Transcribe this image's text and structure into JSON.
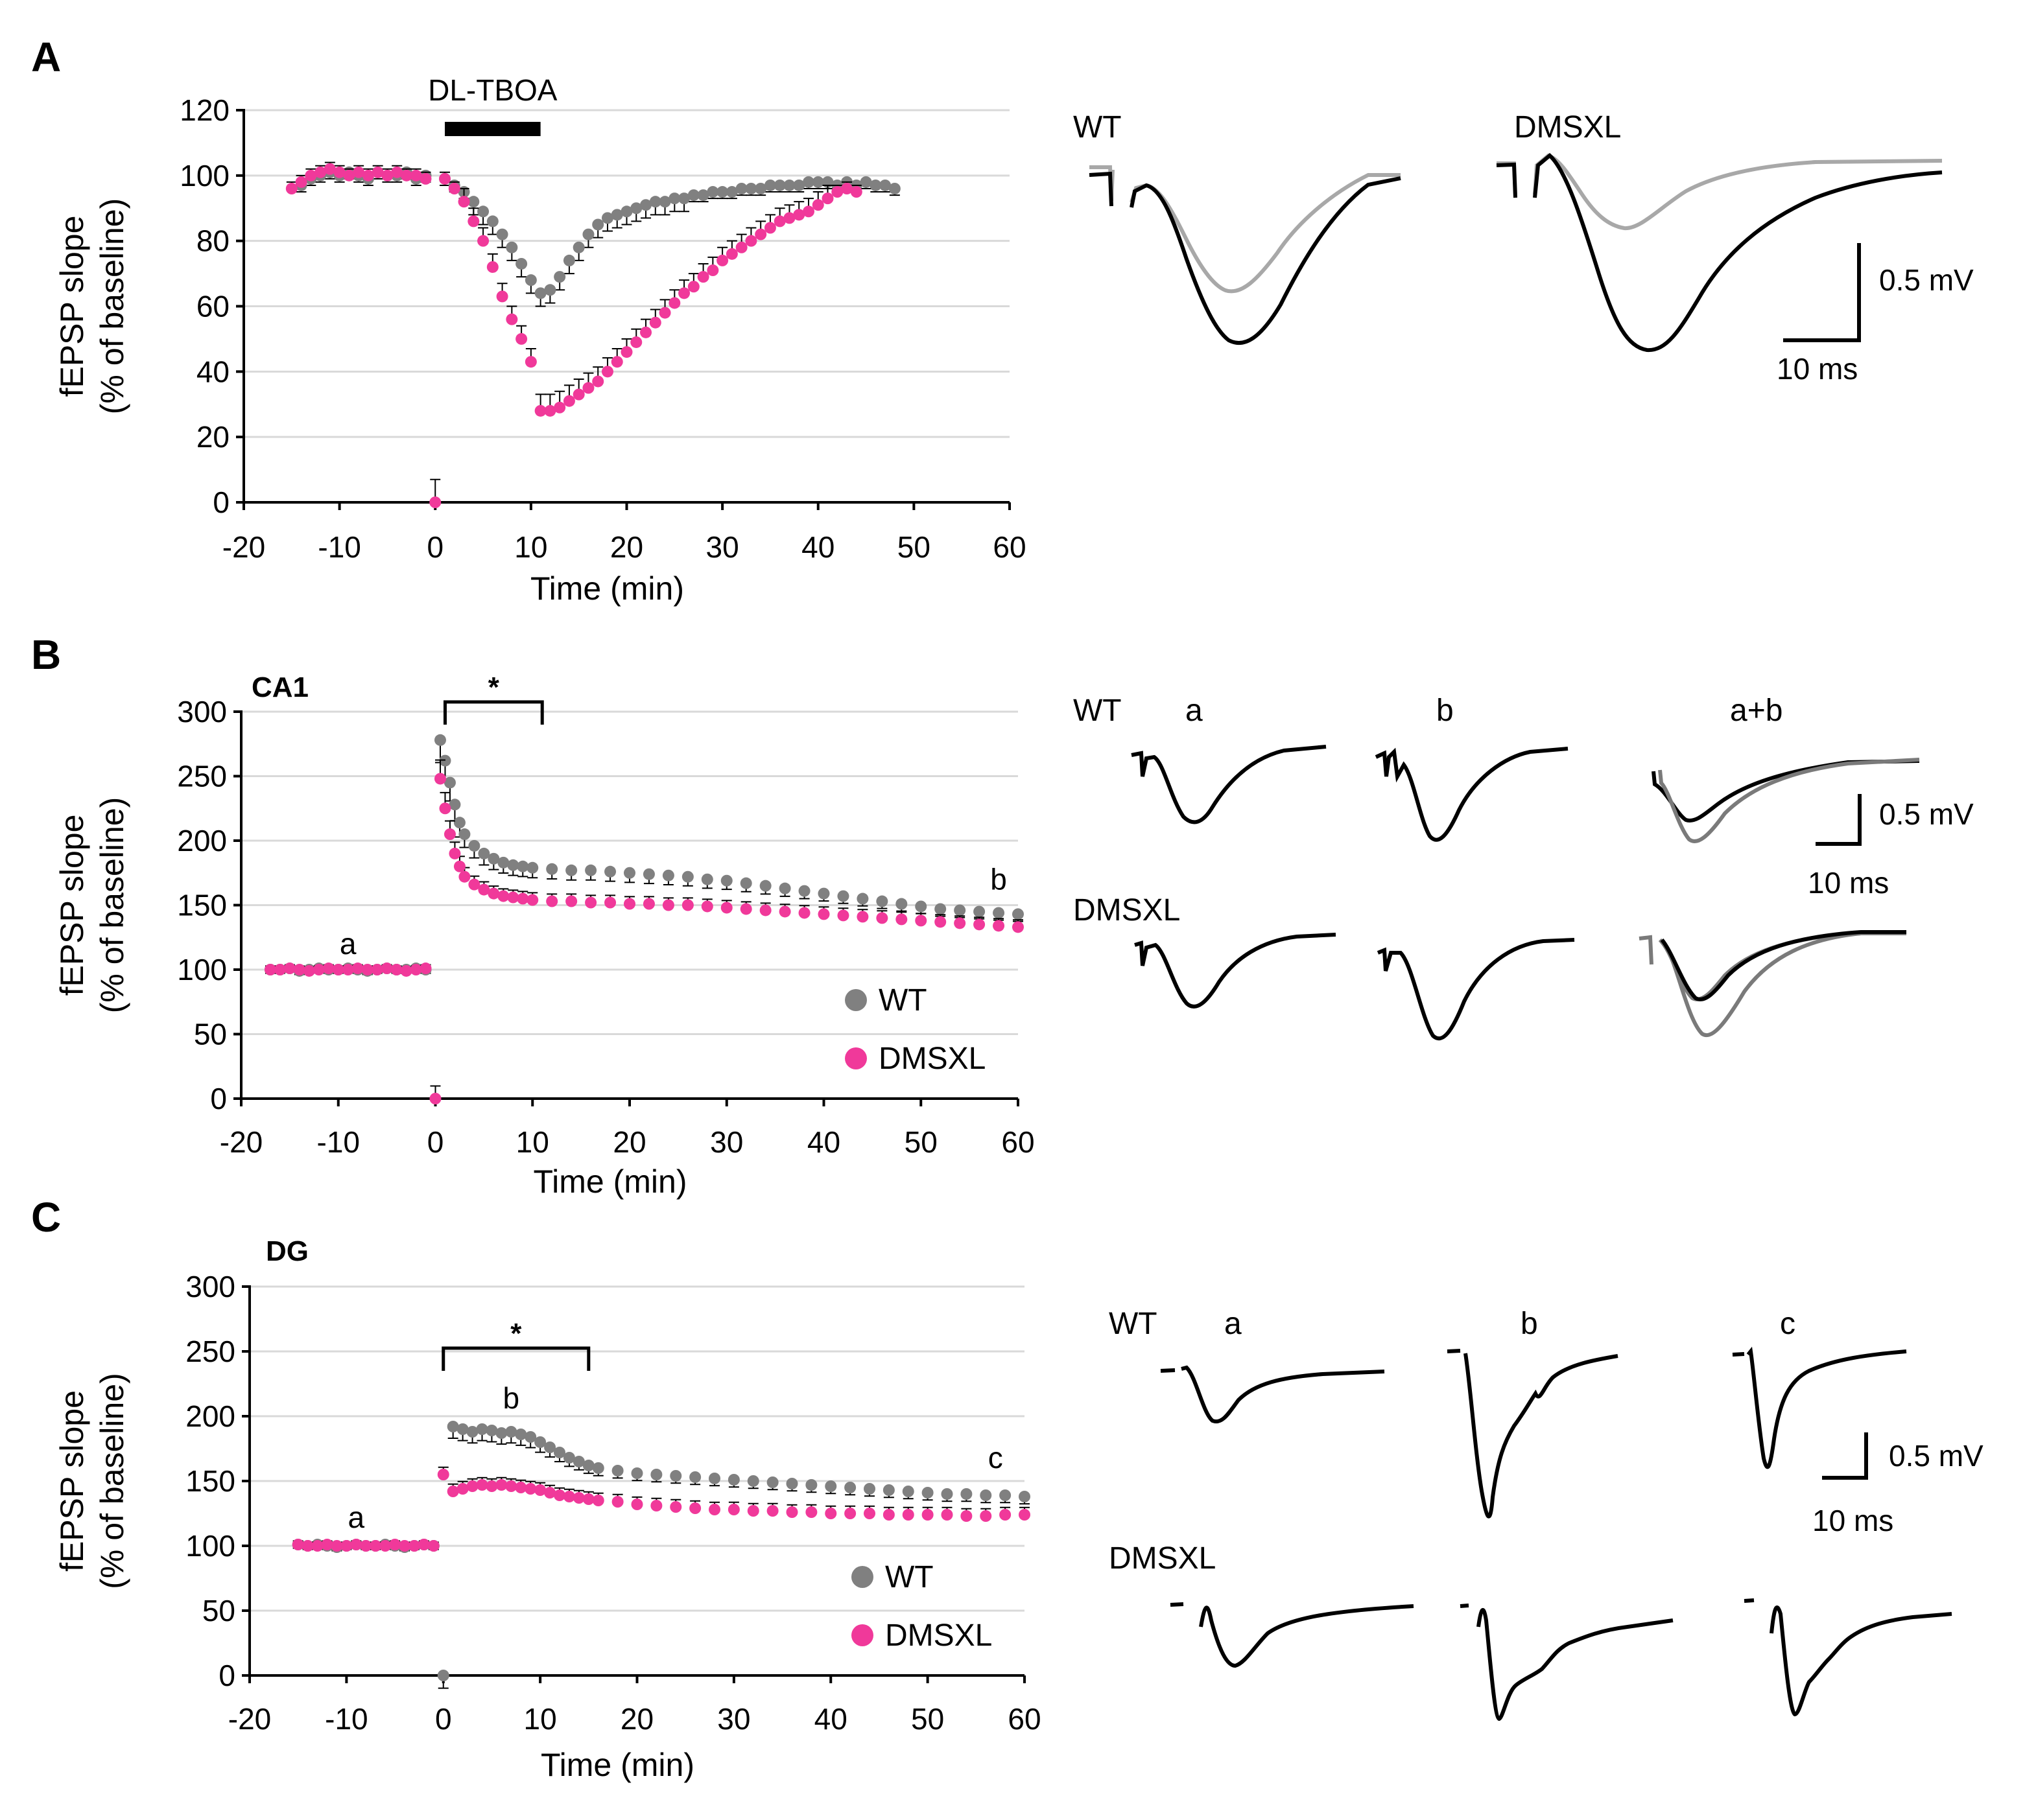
{
  "colors": {
    "wt": "#808080",
    "dmsxl": "#f0399a",
    "trace_gray": "#a8a8a8",
    "trace_dark_gray": "#7a7a7a",
    "gridline": "#d9d9d9"
  },
  "panel_labels": {
    "a": "A",
    "b": "B",
    "c": "C"
  },
  "chart_data": [
    {
      "id": "A",
      "type": "scatter",
      "title": "",
      "xlabel": "Time (min)",
      "ylabel_line1": "fEPSP slope",
      "ylabel_line2": "(% of baseline)",
      "xlim": [
        -20,
        60
      ],
      "ylim": [
        0,
        120
      ],
      "xticks": [
        "-20",
        "-10",
        "0",
        "10",
        "20",
        "30",
        "40",
        "50",
        "60"
      ],
      "yticks": [
        "0",
        "20",
        "40",
        "60",
        "80",
        "100",
        "120"
      ],
      "grid": true,
      "annotation_bar": {
        "label": "DL-TBOA",
        "x_start": 1,
        "x_end": 11
      },
      "series": [
        {
          "name": "WT",
          "color": "#808080",
          "x": [
            -14,
            -13,
            -12,
            -11,
            -10,
            -9,
            -8,
            -7,
            -6,
            -5,
            -4,
            -3,
            -2,
            -1,
            0,
            1,
            2,
            3,
            4,
            5,
            6,
            7,
            8,
            9,
            10,
            11,
            12,
            13,
            14,
            15,
            16,
            17,
            18,
            19,
            20,
            21,
            22,
            23,
            24,
            25,
            26,
            27,
            28,
            29,
            30,
            31,
            32,
            33,
            34,
            35,
            36,
            37,
            38,
            39,
            40,
            41,
            42,
            43,
            44,
            45,
            46,
            47,
            48
          ],
          "y": [
            97,
            99,
            100,
            101,
            100,
            101,
            100,
            99,
            101,
            100,
            100,
            101,
            99,
            100,
            null,
            99,
            97,
            95,
            92,
            89,
            86,
            82,
            78,
            73,
            68,
            64,
            65,
            69,
            74,
            78,
            82,
            85,
            87,
            88,
            89,
            90,
            91,
            92,
            92,
            93,
            93,
            94,
            94,
            95,
            95,
            95,
            96,
            96,
            96,
            97,
            97,
            97,
            97,
            98,
            98,
            98,
            97,
            98,
            97,
            98,
            97,
            97,
            96
          ]
        },
        {
          "name": "DMSXL",
          "color": "#f0399a",
          "x": [
            -15,
            -14,
            -13,
            -12,
            -11,
            -10,
            -9,
            -8,
            -7,
            -6,
            -5,
            -4,
            -3,
            -2,
            -1,
            0,
            1,
            2,
            3,
            4,
            5,
            6,
            7,
            8,
            9,
            10,
            11,
            12,
            13,
            14,
            15,
            16,
            17,
            18,
            19,
            20,
            21,
            22,
            23,
            24,
            25,
            26,
            27,
            28,
            29,
            30,
            31,
            32,
            33,
            34,
            35,
            36,
            37,
            38,
            39,
            40,
            41,
            42,
            43,
            44
          ],
          "y": [
            96,
            98,
            100,
            101,
            102,
            101,
            100,
            101,
            100,
            101,
            100,
            101,
            100,
            100,
            99,
            0,
            99,
            96,
            92,
            86,
            80,
            72,
            63,
            56,
            50,
            43,
            28,
            28,
            29,
            31,
            33,
            35,
            37,
            40,
            43,
            46,
            49,
            52,
            55,
            58,
            61,
            64,
            66,
            69,
            71,
            74,
            76,
            78,
            80,
            82,
            84,
            86,
            87,
            88,
            89,
            91,
            93,
            95,
            96,
            95
          ]
        }
      ]
    },
    {
      "id": "B",
      "type": "scatter",
      "title": "CA1",
      "xlabel": "Time (min)",
      "ylabel_line1": "fEPSP slope",
      "ylabel_line2": "(% of baseline)",
      "xlim": [
        -20,
        60
      ],
      "ylim": [
        0,
        300
      ],
      "xticks": [
        "-20",
        "-10",
        "0",
        "10",
        "20",
        "30",
        "40",
        "50",
        "60"
      ],
      "yticks": [
        "0",
        "50",
        "100",
        "150",
        "200",
        "250",
        "300"
      ],
      "grid": true,
      "significance": {
        "label": "*",
        "x_start": 1,
        "x_end": 11
      },
      "point_labels": [
        {
          "text": "a",
          "x": -9,
          "y": 112
        },
        {
          "text": "b",
          "x": 58,
          "y": 162
        }
      ],
      "legend": {
        "placement": "bottom-right",
        "entries": [
          "WT",
          "DMSXL"
        ]
      },
      "series": [
        {
          "name": "WT",
          "color": "#808080",
          "x": [
            -17,
            -16,
            -15,
            -14,
            -13,
            -12,
            -11,
            -10,
            -9,
            -8,
            -7,
            -6,
            -5,
            -4,
            -3,
            -2,
            -1,
            0,
            0.5,
            1,
            1.5,
            2,
            2.5,
            3,
            4,
            5,
            6,
            7,
            8,
            9,
            10,
            12,
            14,
            16,
            18,
            20,
            22,
            24,
            26,
            28,
            30,
            32,
            34,
            36,
            38,
            40,
            42,
            44,
            46,
            48,
            50,
            52,
            54,
            56,
            58,
            60
          ],
          "y": [
            100,
            100,
            101,
            99,
            100,
            101,
            100,
            100,
            101,
            100,
            99,
            100,
            101,
            100,
            100,
            101,
            100,
            null,
            278,
            262,
            245,
            228,
            214,
            205,
            196,
            190,
            186,
            183,
            181,
            180,
            179,
            178,
            177,
            177,
            176,
            175,
            174,
            173,
            172,
            170,
            169,
            167,
            165,
            163,
            161,
            159,
            157,
            155,
            153,
            151,
            149,
            147,
            146,
            145,
            144,
            143
          ]
        },
        {
          "name": "DMSXL",
          "color": "#f0399a",
          "x": [
            -17,
            -16,
            -15,
            -14,
            -13,
            -12,
            -11,
            -10,
            -9,
            -8,
            -7,
            -6,
            -5,
            -4,
            -3,
            -2,
            -1,
            0,
            0.5,
            1,
            1.5,
            2,
            2.5,
            3,
            4,
            5,
            6,
            7,
            8,
            9,
            10,
            12,
            14,
            16,
            18,
            20,
            22,
            24,
            26,
            28,
            30,
            32,
            34,
            36,
            38,
            40,
            42,
            44,
            46,
            48,
            50,
            52,
            54,
            56,
            58,
            60
          ],
          "y": [
            100,
            100,
            101,
            100,
            99,
            100,
            101,
            100,
            100,
            101,
            100,
            100,
            101,
            100,
            99,
            100,
            101,
            0,
            248,
            225,
            205,
            190,
            180,
            172,
            166,
            162,
            159,
            157,
            156,
            155,
            154,
            153,
            153,
            152,
            152,
            151,
            151,
            150,
            150,
            149,
            148,
            147,
            146,
            145,
            144,
            143,
            142,
            141,
            140,
            139,
            138,
            137,
            136,
            135,
            134,
            133
          ]
        }
      ]
    },
    {
      "id": "C",
      "type": "scatter",
      "title": "DG",
      "xlabel": "Time (min)",
      "ylabel_line1": "fEPSP slope",
      "ylabel_line2": "(% of baseline)",
      "xlim": [
        -20,
        60
      ],
      "ylim": [
        0,
        300
      ],
      "xticks": [
        "-20",
        "-10",
        "0",
        "10",
        "20",
        "30",
        "40",
        "50",
        "60"
      ],
      "yticks": [
        "0",
        "50",
        "100",
        "150",
        "200",
        "250",
        "300"
      ],
      "grid": true,
      "significance": {
        "label": "*",
        "x_start": 0,
        "x_end": 15
      },
      "point_labels": [
        {
          "text": "a",
          "x": -9,
          "y": 114
        },
        {
          "text": "b",
          "x": 7,
          "y": 206
        },
        {
          "text": "c",
          "x": 57,
          "y": 160
        }
      ],
      "legend": {
        "placement": "bottom-right",
        "entries": [
          "WT",
          "DMSXL"
        ]
      },
      "series": [
        {
          "name": "WT",
          "color": "#808080",
          "x": [
            -15,
            -14,
            -13,
            -12,
            -11,
            -10,
            -9,
            -8,
            -7,
            -6,
            -5,
            -4,
            -3,
            -2,
            -1,
            0,
            1,
            2,
            3,
            4,
            5,
            6,
            7,
            8,
            9,
            10,
            11,
            12,
            13,
            14,
            15,
            16,
            18,
            20,
            22,
            24,
            26,
            28,
            30,
            32,
            34,
            36,
            38,
            40,
            42,
            44,
            46,
            48,
            50,
            52,
            54,
            56,
            58,
            60
          ],
          "y": [
            101,
            100,
            101,
            100,
            99,
            100,
            101,
            100,
            100,
            101,
            100,
            99,
            100,
            101,
            100,
            0,
            192,
            190,
            188,
            190,
            189,
            187,
            188,
            186,
            184,
            180,
            176,
            172,
            168,
            165,
            162,
            160,
            158,
            156,
            155,
            154,
            153,
            152,
            151,
            150,
            149,
            148,
            147,
            146,
            145,
            144,
            143,
            142,
            141,
            140,
            140,
            139,
            139,
            138
          ]
        },
        {
          "name": "DMSXL",
          "color": "#f0399a",
          "x": [
            -15,
            -14,
            -13,
            -12,
            -11,
            -10,
            -9,
            -8,
            -7,
            -6,
            -5,
            -4,
            -3,
            -2,
            -1,
            0,
            1,
            2,
            3,
            4,
            5,
            6,
            7,
            8,
            9,
            10,
            11,
            12,
            13,
            14,
            15,
            16,
            18,
            20,
            22,
            24,
            26,
            28,
            30,
            32,
            34,
            36,
            38,
            40,
            42,
            44,
            46,
            48,
            50,
            52,
            54,
            56,
            58,
            60
          ],
          "y": [
            101,
            100,
            100,
            101,
            100,
            100,
            101,
            100,
            100,
            100,
            101,
            100,
            100,
            101,
            100,
            155,
            142,
            144,
            146,
            147,
            146,
            147,
            146,
            145,
            144,
            143,
            141,
            139,
            138,
            137,
            136,
            135,
            134,
            132,
            131,
            130,
            129,
            128,
            128,
            127,
            127,
            126,
            126,
            125,
            125,
            125,
            124,
            124,
            124,
            124,
            123,
            123,
            124,
            124
          ]
        }
      ]
    }
  ],
  "traces": {
    "A": {
      "wt_label": "WT",
      "dmsxl_label": "DMSXL",
      "scale_v": "0.5 mV",
      "scale_t": "10 ms"
    },
    "B": {
      "wt_label": "WT",
      "dmsxl_label": "DMSXL",
      "col_a": "a",
      "col_b": "b",
      "col_ab": "a+b",
      "scale_v": "0.5 mV",
      "scale_t": "10 ms"
    },
    "C": {
      "wt_label": "WT",
      "dmsxl_label": "DMSXL",
      "col_a": "a",
      "col_b": "b",
      "col_c": "c",
      "scale_v": "0.5 mV",
      "scale_t": "10 ms"
    }
  }
}
